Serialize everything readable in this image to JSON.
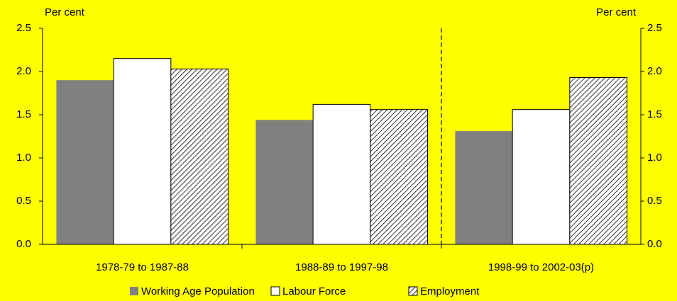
{
  "chart_data": {
    "type": "bar",
    "y_label": "Per cent",
    "y2_label": "Per cent",
    "categories": [
      "1978-79 to 1987-88",
      "1988-89 to 1997-98",
      "1998-99 to 2002-03(p)"
    ],
    "series": [
      {
        "name": "Working Age Population",
        "color": "#808080",
        "values": [
          1.9,
          1.44,
          1.31
        ]
      },
      {
        "name": "Labour Force",
        "color": "#ffffff",
        "values": [
          2.15,
          1.62,
          1.56
        ]
      },
      {
        "name": "Employment",
        "color": "#ffffff",
        "hatch": true,
        "values": [
          2.03,
          1.56,
          1.93
        ]
      }
    ],
    "ylim": [
      0,
      2.5
    ],
    "yticks": [
      {
        "value": 0,
        "label": "0.0"
      },
      0.5,
      {
        "value": 1,
        "label": "1.0"
      },
      1.5,
      {
        "value": 2,
        "label": "2.0"
      },
      2.5
    ],
    "y2lim": [
      0,
      2.5
    ],
    "y2ticks": [
      {
        "value": 0,
        "label": "0.0"
      },
      0.5,
      {
        "value": 1,
        "label": "1.0"
      },
      1.5,
      {
        "value": 2,
        "label": "2.0"
      },
      2.5
    ],
    "divider_after": 1,
    "background": "#ffff00",
    "legend": "bottom"
  }
}
